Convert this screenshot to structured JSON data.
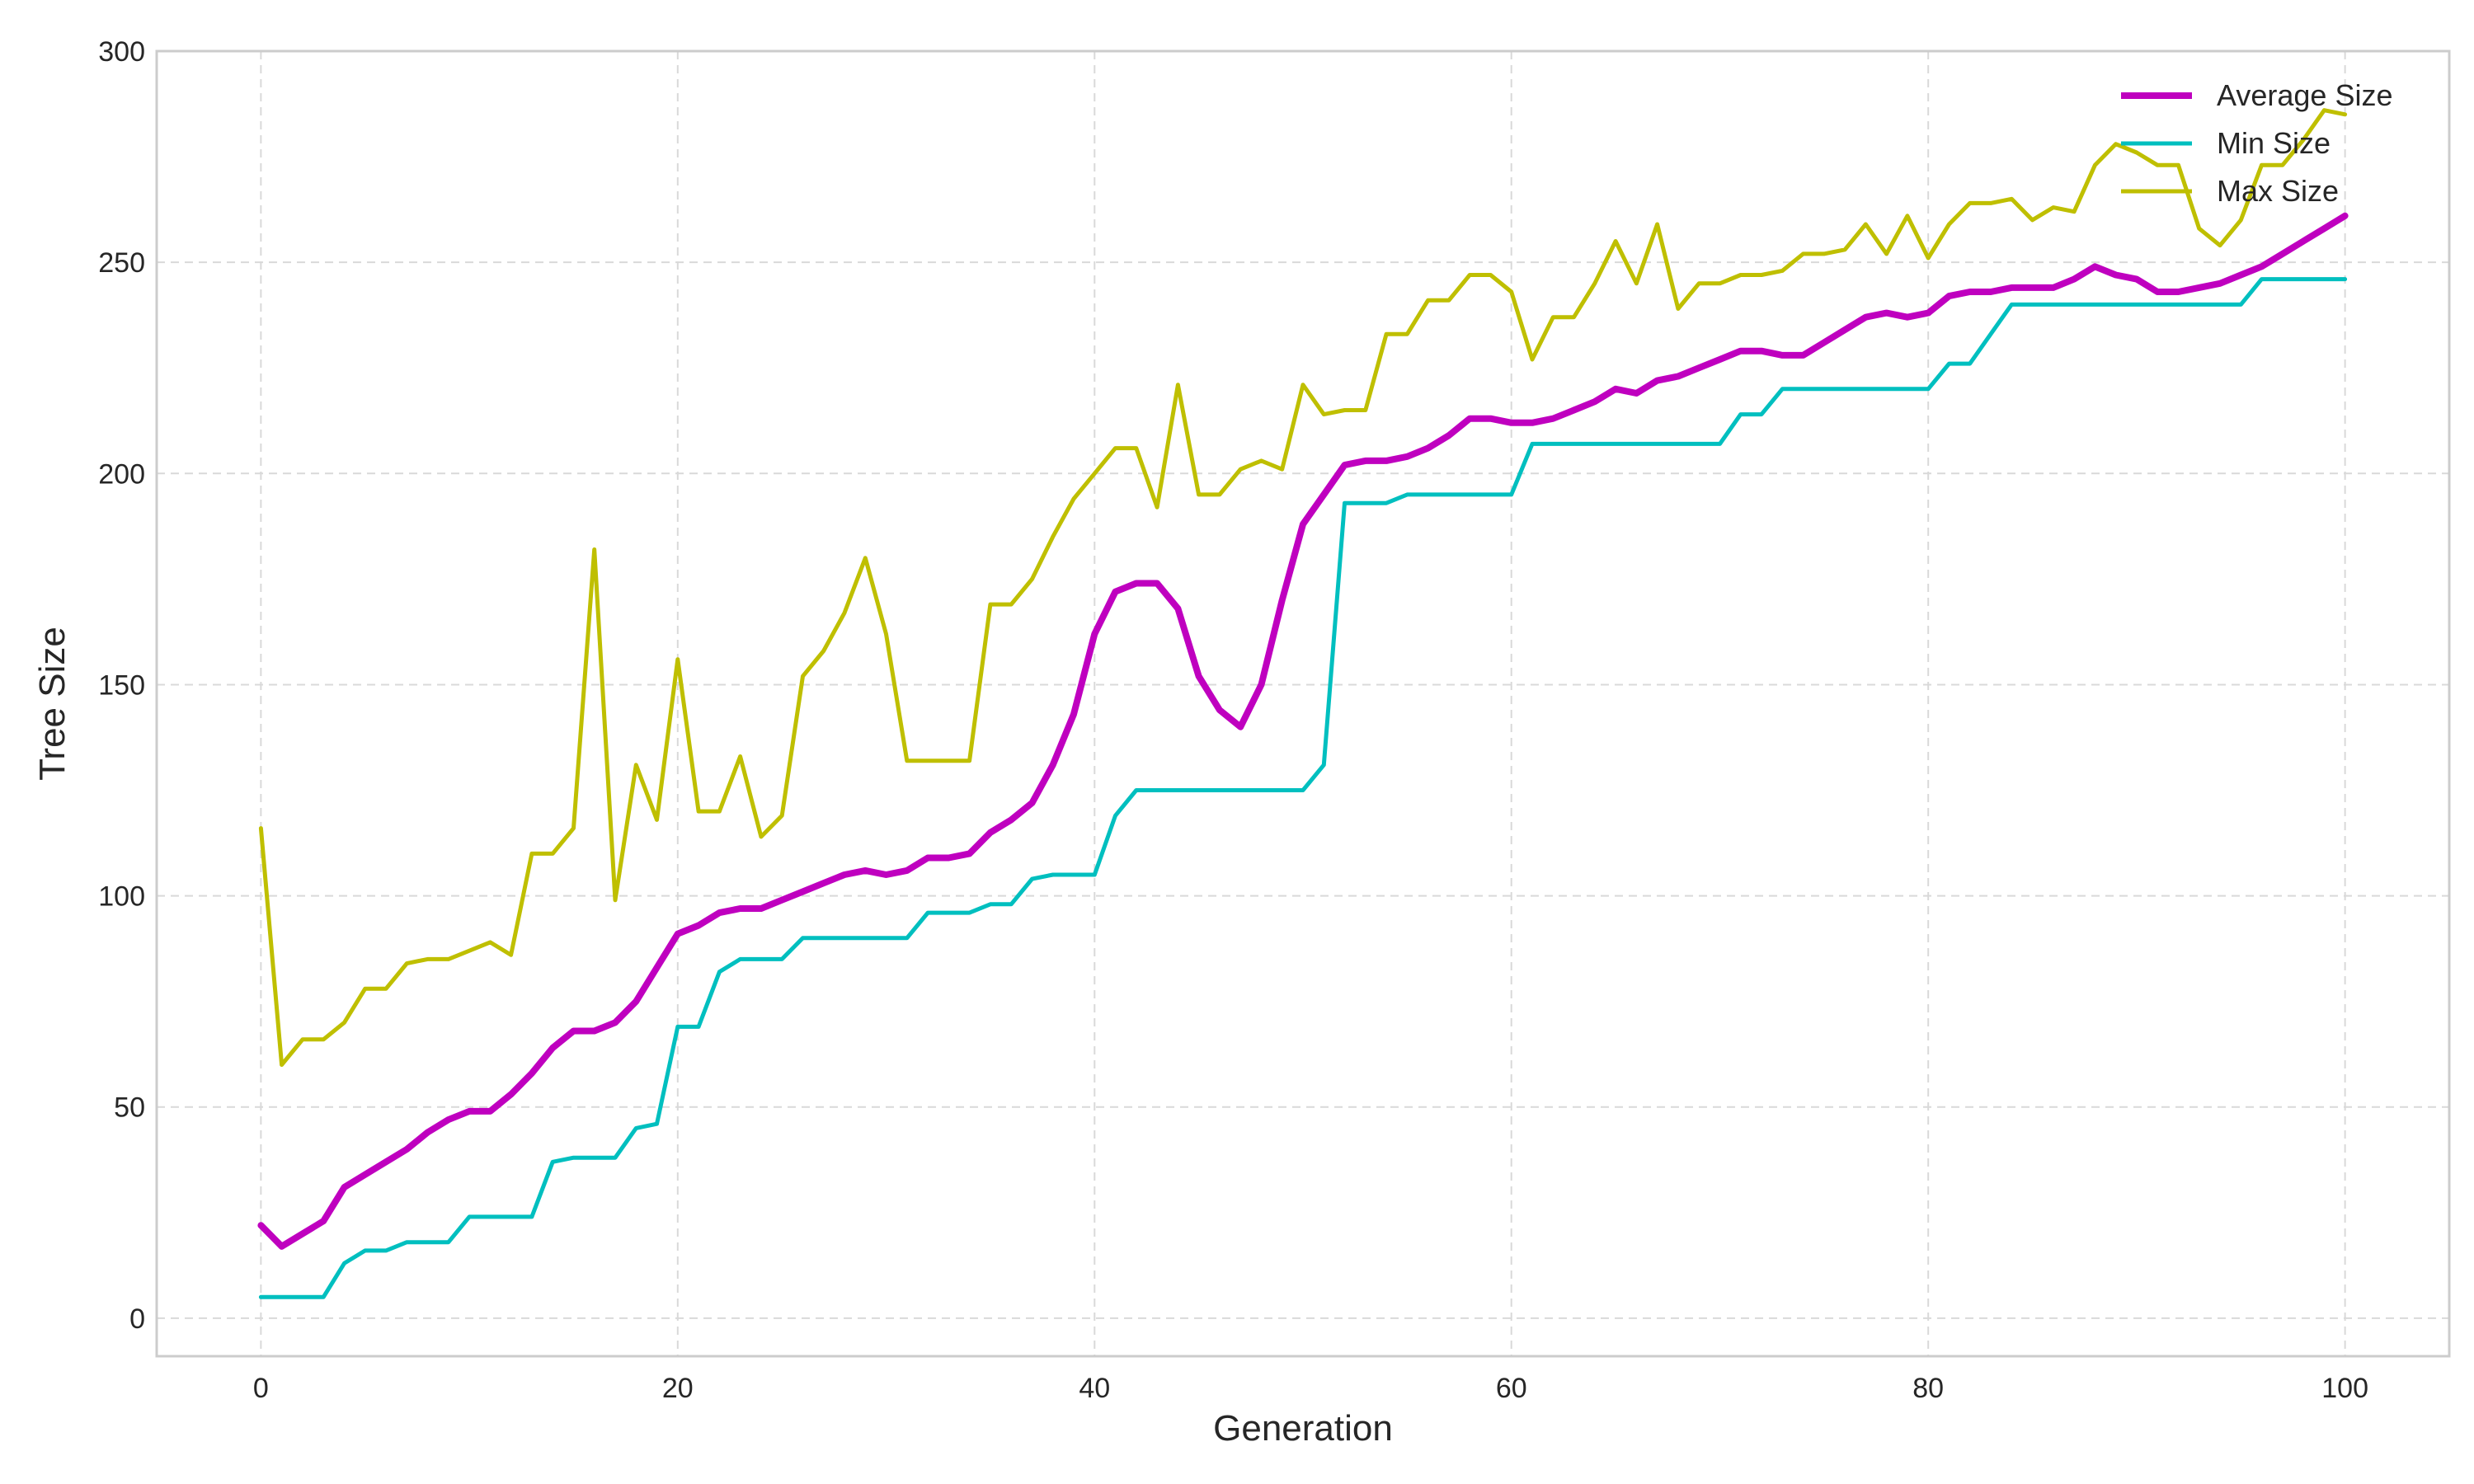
{
  "chart_data": {
    "type": "line",
    "title": "",
    "xlabel": "Generation",
    "ylabel": "Tree Size",
    "xlim": [
      -5,
      105
    ],
    "ylim": [
      -9,
      300
    ],
    "xticks": [
      0,
      20,
      40,
      60,
      80,
      100
    ],
    "yticks": [
      0,
      50,
      100,
      150,
      200,
      250,
      300
    ],
    "grid": true,
    "legend_position": "top-right",
    "x": [
      0,
      1,
      2,
      3,
      4,
      5,
      6,
      7,
      8,
      9,
      10,
      11,
      12,
      13,
      14,
      15,
      16,
      17,
      18,
      19,
      20,
      21,
      22,
      23,
      24,
      25,
      26,
      27,
      28,
      29,
      30,
      31,
      32,
      33,
      34,
      35,
      36,
      37,
      38,
      39,
      40,
      41,
      42,
      43,
      44,
      45,
      46,
      47,
      48,
      49,
      50,
      51,
      52,
      53,
      54,
      55,
      56,
      57,
      58,
      59,
      60,
      61,
      62,
      63,
      64,
      65,
      66,
      67,
      68,
      69,
      70,
      71,
      72,
      73,
      74,
      75,
      76,
      77,
      78,
      79,
      80,
      81,
      82,
      83,
      84,
      85,
      86,
      87,
      88,
      89,
      90,
      91,
      92,
      93,
      94,
      95,
      96,
      97,
      98,
      99,
      100
    ],
    "series": [
      {
        "name": "Average Size",
        "color": "#bf00bf",
        "width": 8,
        "values": [
          22,
          17,
          20,
          23,
          31,
          34,
          37,
          40,
          44,
          47,
          49,
          49,
          53,
          58,
          64,
          68,
          68,
          70,
          75,
          83,
          91,
          93,
          96,
          97,
          97,
          99,
          101,
          103,
          105,
          106,
          105,
          106,
          109,
          109,
          110,
          115,
          118,
          122,
          131,
          143,
          162,
          172,
          174,
          174,
          168,
          152,
          144,
          140,
          150,
          170,
          188,
          195,
          202,
          203,
          203,
          204,
          206,
          209,
          213,
          213,
          212,
          212,
          213,
          215,
          217,
          220,
          219,
          222,
          223,
          225,
          227,
          229,
          229,
          228,
          228,
          231,
          234,
          237,
          238,
          237,
          238,
          242,
          243,
          243,
          244,
          244,
          244,
          246,
          249,
          247,
          246,
          243,
          243,
          244,
          245,
          247,
          249,
          252,
          255,
          258,
          261
        ]
      },
      {
        "name": "Min Size",
        "color": "#00bfbf",
        "width": 5,
        "values": [
          5,
          5,
          5,
          5,
          13,
          16,
          16,
          18,
          18,
          18,
          24,
          24,
          24,
          24,
          37,
          38,
          38,
          38,
          45,
          46,
          69,
          69,
          82,
          85,
          85,
          85,
          90,
          90,
          90,
          90,
          90,
          90,
          96,
          96,
          96,
          98,
          98,
          104,
          105,
          105,
          105,
          119,
          125,
          125,
          125,
          125,
          125,
          125,
          125,
          125,
          125,
          131,
          193,
          193,
          193,
          195,
          195,
          195,
          195,
          195,
          195,
          207,
          207,
          207,
          207,
          207,
          207,
          207,
          207,
          207,
          207,
          214,
          214,
          220,
          220,
          220,
          220,
          220,
          220,
          220,
          220,
          226,
          226,
          233,
          240,
          240,
          240,
          240,
          240,
          240,
          240,
          240,
          240,
          240,
          240,
          240,
          246,
          246,
          246,
          246,
          246
        ]
      },
      {
        "name": "Max Size",
        "color": "#bfbf00",
        "width": 5,
        "values": [
          116,
          60,
          66,
          66,
          70,
          78,
          78,
          84,
          85,
          85,
          87,
          89,
          86,
          110,
          110,
          116,
          182,
          99,
          131,
          118,
          156,
          120,
          120,
          133,
          114,
          119,
          152,
          158,
          167,
          180,
          162,
          132,
          132,
          132,
          132,
          169,
          169,
          175,
          185,
          194,
          200,
          206,
          206,
          192,
          221,
          195,
          195,
          201,
          203,
          201,
          221,
          214,
          215,
          215,
          233,
          233,
          241,
          241,
          247,
          247,
          243,
          227,
          237,
          237,
          245,
          255,
          245,
          259,
          239,
          245,
          245,
          247,
          247,
          248,
          252,
          252,
          253,
          259,
          252,
          261,
          251,
          259,
          264,
          264,
          265,
          260,
          263,
          262,
          273,
          278,
          276,
          273,
          273,
          258,
          254,
          260,
          273,
          273,
          279,
          286,
          285
        ]
      }
    ]
  }
}
